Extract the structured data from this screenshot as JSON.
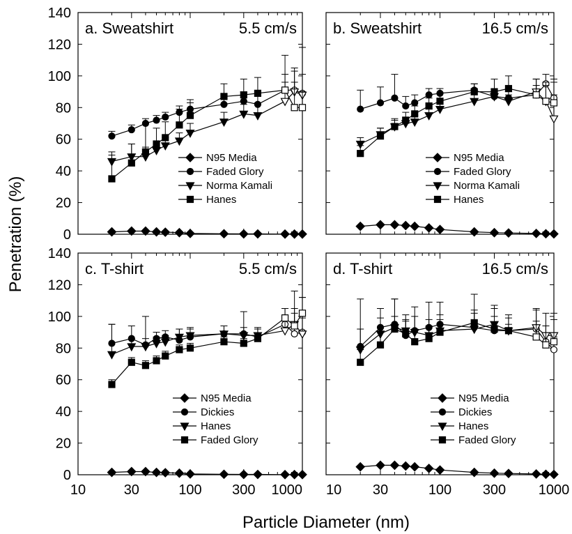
{
  "figure": {
    "ylabel": "Penetration (%)",
    "xlabel": "Particle Diameter (nm)",
    "y_ticks": [
      "0",
      "20",
      "40",
      "60",
      "80",
      "100",
      "120",
      "140"
    ],
    "x_ticks": [
      "10",
      "30",
      "100",
      "300",
      "1000"
    ]
  },
  "chart_data": [
    {
      "type": "line",
      "panel": "a",
      "title_left": "a. Sweatshirt",
      "title_right": "5.5 cm/s",
      "x_scale": "log",
      "xlim": [
        10,
        1000
      ],
      "ylim": [
        0,
        140
      ],
      "x": [
        20,
        30,
        40,
        50,
        60,
        80,
        100,
        200,
        300,
        400,
        700,
        850,
        1000
      ],
      "open_from_x": 700,
      "series": [
        {
          "name": "N95 Media",
          "marker": "diamond",
          "values": [
            1.5,
            2,
            2,
            1.5,
            1.3,
            1,
            0.5,
            0.3,
            0.2,
            0.2,
            0.1,
            0.1,
            0.1
          ],
          "err": [
            0,
            0,
            0,
            0,
            0,
            0,
            0,
            0,
            0,
            0,
            0,
            0,
            0
          ]
        },
        {
          "name": "Faded Glory",
          "marker": "circle",
          "values": [
            62,
            66,
            70,
            72,
            74,
            77,
            79,
            82,
            84,
            82,
            91,
            91,
            89
          ],
          "err": [
            3,
            3,
            3,
            3,
            3,
            4,
            4,
            5,
            6,
            8,
            10,
            12,
            12
          ]
        },
        {
          "name": "Norma Kamali",
          "marker": "triangle",
          "values": [
            46,
            49,
            49,
            53,
            56,
            59,
            64,
            71,
            76,
            75,
            84,
            90,
            88
          ],
          "err": [
            6,
            8,
            6,
            5,
            5,
            5,
            6,
            6,
            6,
            8,
            12,
            15,
            30
          ]
        },
        {
          "name": "Hanes",
          "marker": "square",
          "values": [
            35,
            45,
            52,
            57,
            61,
            69,
            75,
            87,
            88,
            89,
            91,
            80,
            80
          ],
          "err": [
            15,
            12,
            18,
            10,
            10,
            10,
            10,
            8,
            10,
            10,
            22,
            16,
            10
          ]
        }
      ]
    },
    {
      "type": "line",
      "panel": "b",
      "title_left": "b. Sweatshirt",
      "title_right": "16.5 cm/s",
      "x_scale": "log",
      "xlim": [
        10,
        1000
      ],
      "ylim": [
        0,
        140
      ],
      "x": [
        20,
        30,
        40,
        50,
        60,
        80,
        100,
        200,
        300,
        400,
        700,
        850,
        1000
      ],
      "open_from_x": 700,
      "series": [
        {
          "name": "N95 Media",
          "marker": "diamond",
          "values": [
            5,
            6,
            6,
            5.5,
            5,
            4,
            3,
            1.5,
            1,
            0.8,
            0.5,
            0.3,
            0.2
          ],
          "err": [
            0,
            0,
            0,
            0,
            0,
            0,
            0,
            0,
            0,
            0,
            0,
            0,
            0
          ]
        },
        {
          "name": "Faded Glory",
          "marker": "circle",
          "values": [
            79,
            83,
            86,
            81,
            83,
            88,
            89,
            91,
            87,
            86,
            88,
            95,
            86
          ],
          "err": [
            12,
            10,
            15,
            6,
            5,
            4,
            3,
            4,
            4,
            4,
            6,
            6,
            10
          ]
        },
        {
          "name": "Norma Kamali",
          "marker": "triangle",
          "values": [
            57,
            63,
            68,
            70,
            71,
            75,
            79,
            84,
            87,
            84,
            90,
            84,
            73
          ],
          "err": [
            4,
            4,
            4,
            4,
            4,
            4,
            4,
            4,
            4,
            4,
            8,
            10,
            15
          ]
        },
        {
          "name": "Hanes",
          "marker": "square",
          "values": [
            51,
            62,
            68,
            72,
            76,
            81,
            84,
            90,
            90,
            92,
            88,
            84,
            83
          ],
          "err": [
            5,
            5,
            5,
            5,
            5,
            5,
            5,
            5,
            8,
            8,
            10,
            12,
            15
          ]
        }
      ]
    },
    {
      "type": "line",
      "panel": "c",
      "title_left": "c. T-shirt",
      "title_right": "5.5 cm/s",
      "x_scale": "log",
      "xlim": [
        10,
        1000
      ],
      "ylim": [
        0,
        140
      ],
      "x": [
        20,
        30,
        40,
        50,
        60,
        80,
        100,
        200,
        300,
        400,
        700,
        850,
        1000
      ],
      "open_from_x": 700,
      "series": [
        {
          "name": "N95 Media",
          "marker": "diamond",
          "values": [
            1.5,
            2,
            2,
            1.5,
            1.3,
            1,
            0.5,
            0.3,
            0.2,
            0.2,
            0.1,
            0.1,
            0.1
          ],
          "err": [
            0,
            0,
            0,
            0,
            0,
            0,
            0,
            0,
            0,
            0,
            0,
            0,
            0
          ]
        },
        {
          "name": "Dickies",
          "marker": "circle",
          "values": [
            83,
            86,
            82,
            86,
            87,
            85,
            87,
            89,
            89,
            87,
            95,
            89,
            90
          ],
          "err": [
            12,
            8,
            18,
            4,
            4,
            7,
            5,
            5,
            14,
            5,
            10,
            27,
            22
          ]
        },
        {
          "name": "Hanes",
          "marker": "triangle",
          "values": [
            76,
            81,
            81,
            83,
            84,
            87,
            88,
            89,
            88,
            88,
            91,
            95,
            89
          ],
          "err": [
            19,
            5,
            5,
            4,
            4,
            5,
            5,
            5,
            5,
            5,
            10,
            10,
            10
          ]
        },
        {
          "name": "Faded Glory",
          "marker": "square",
          "values": [
            57,
            71,
            69,
            72,
            75,
            79,
            80,
            84,
            83,
            86,
            99,
            94,
            102
          ],
          "err": [
            3,
            3,
            3,
            3,
            3,
            3,
            3,
            3,
            3,
            3,
            6,
            8,
            10
          ]
        }
      ]
    },
    {
      "type": "line",
      "panel": "d",
      "title_left": "d. T-shirt",
      "title_right": "16.5 cm/s",
      "x_scale": "log",
      "xlim": [
        10,
        1000
      ],
      "ylim": [
        0,
        140
      ],
      "x": [
        20,
        30,
        40,
        50,
        60,
        80,
        100,
        200,
        300,
        400,
        700,
        850,
        1000
      ],
      "open_from_x": 700,
      "series": [
        {
          "name": "N95 Media",
          "marker": "diamond",
          "values": [
            5,
            6,
            6,
            5.5,
            5,
            4,
            3,
            1.5,
            1,
            0.8,
            0.5,
            0.3,
            0.2
          ],
          "err": [
            0,
            0,
            0,
            0,
            0,
            0,
            0,
            0,
            0,
            0,
            0,
            0,
            0
          ]
        },
        {
          "name": "Dickies",
          "marker": "circle",
          "values": [
            81,
            93,
            95,
            88,
            91,
            93,
            95,
            93,
            91,
            91,
            92,
            84,
            79
          ],
          "err": [
            30,
            12,
            16,
            10,
            15,
            16,
            14,
            21,
            16,
            4,
            12,
            10,
            8
          ]
        },
        {
          "name": "Hanes",
          "marker": "triangle",
          "values": [
            79,
            89,
            93,
            91,
            90,
            88,
            91,
            92,
            95,
            91,
            93,
            88,
            88
          ],
          "err": [
            13,
            10,
            18,
            10,
            10,
            10,
            10,
            10,
            10,
            10,
            12,
            14,
            14
          ]
        },
        {
          "name": "Faded Glory",
          "marker": "square",
          "values": [
            71,
            82,
            92,
            89,
            84,
            86,
            90,
            96,
            92,
            91,
            87,
            82,
            84
          ],
          "err": [
            8,
            8,
            8,
            8,
            8,
            8,
            8,
            8,
            8,
            8,
            10,
            12,
            14
          ]
        }
      ]
    }
  ]
}
